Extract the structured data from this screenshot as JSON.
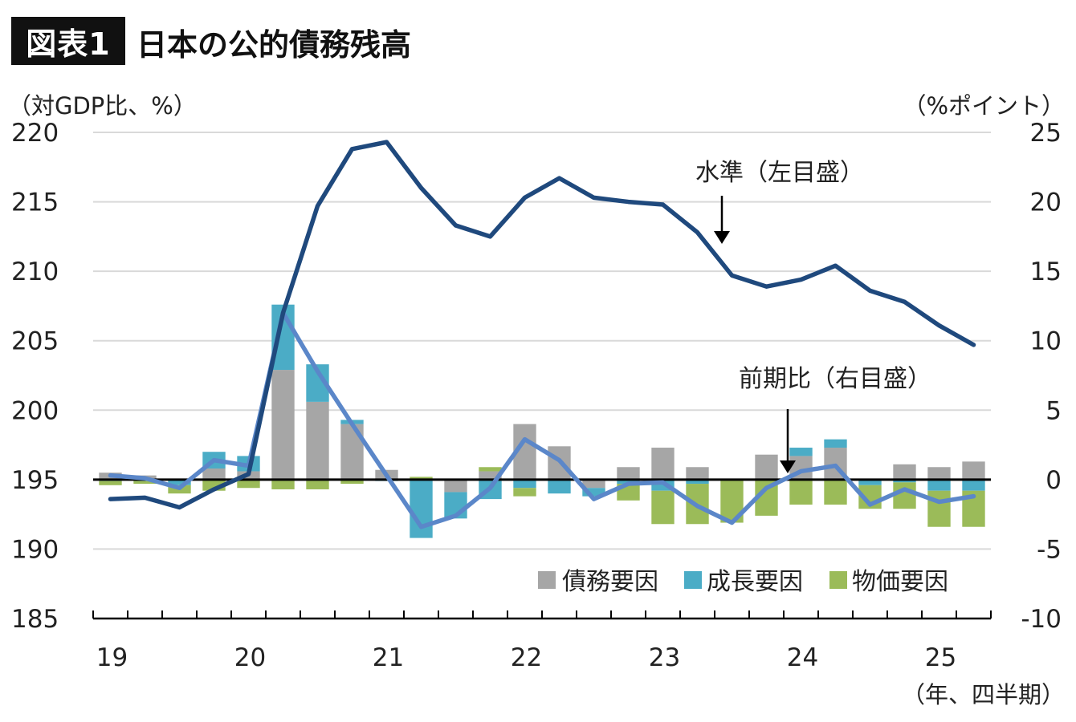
{
  "badge": "図表1",
  "title": "日本の公的債務残高",
  "chart_data": {
    "type": "bar+line",
    "title": "日本の公的債務残高",
    "left_unit": "（対GDP比、%）",
    "right_unit": "（%ポイント）",
    "x_unit": "（年、四半期）",
    "ylim_left": [
      185,
      220
    ],
    "ylim_right": [
      -10,
      25
    ],
    "left_ticks": [
      "220",
      "215",
      "210",
      "205",
      "200",
      "195",
      "190",
      "185"
    ],
    "right_ticks": [
      "25",
      "20",
      "15",
      "10",
      "5",
      "0",
      "-5",
      "-10"
    ],
    "x_year_labels": [
      "19",
      "20",
      "21",
      "22",
      "23",
      "24",
      "25"
    ],
    "quarters": [
      "19Q1",
      "19Q2",
      "19Q3",
      "19Q4",
      "20Q1",
      "20Q2",
      "20Q3",
      "20Q4",
      "21Q1",
      "21Q2",
      "21Q3",
      "21Q4",
      "22Q1",
      "22Q2",
      "22Q3",
      "22Q4",
      "23Q1",
      "23Q2",
      "23Q3",
      "23Q4",
      "24Q1",
      "24Q2",
      "24Q3",
      "24Q4",
      "25Q1",
      "25Q2"
    ],
    "level_line": {
      "name": "水準（左目盛）",
      "axis": "left",
      "values": [
        193.6,
        193.7,
        193.0,
        194.3,
        195.4,
        207.0,
        214.7,
        218.8,
        219.3,
        216.0,
        213.3,
        212.5,
        215.3,
        216.7,
        215.3,
        215.0,
        214.8,
        212.8,
        209.7,
        208.9,
        209.4,
        210.4,
        208.6,
        207.8,
        206.1,
        204.7
      ]
    },
    "change_line": {
      "name": "前期比（右目盛）",
      "axis": "right",
      "values": [
        0.3,
        0.1,
        -0.6,
        1.4,
        1.0,
        12.0,
        7.8,
        4.0,
        0.3,
        -3.4,
        -2.6,
        -0.6,
        2.9,
        1.4,
        -1.4,
        -0.3,
        -0.2,
        -1.9,
        -3.1,
        -0.6,
        0.6,
        1.0,
        -1.8,
        -0.7,
        -1.6,
        -1.2
      ]
    },
    "bar_series": [
      {
        "name": "債務要因",
        "color": "#a6a6a6",
        "values": [
          0.5,
          0.3,
          0.0,
          0.8,
          0.6,
          7.9,
          5.6,
          4.0,
          0.7,
          0.0,
          -0.9,
          0.6,
          4.0,
          2.4,
          -0.6,
          0.9,
          2.3,
          0.9,
          0.0,
          1.8,
          1.7,
          2.3,
          0.0,
          1.1,
          0.9,
          1.3
        ]
      },
      {
        "name": "成長要因",
        "color": "#4bacc6",
        "values": [
          -0.1,
          -0.1,
          -0.4,
          1.2,
          1.1,
          4.7,
          2.7,
          0.3,
          -0.1,
          -4.2,
          -1.9,
          -1.4,
          -0.6,
          -1.0,
          -0.6,
          -0.3,
          -0.8,
          -0.3,
          0.0,
          0.0,
          0.6,
          0.6,
          -0.4,
          -0.2,
          -0.8,
          -0.8
        ]
      },
      {
        "name": "物価要因",
        "color": "#9bbb59",
        "values": [
          -0.3,
          -0.2,
          -0.6,
          -0.8,
          -0.6,
          -0.7,
          -0.7,
          -0.3,
          0.0,
          0.2,
          0.0,
          0.3,
          -0.6,
          0.0,
          0.0,
          -1.2,
          -2.4,
          -2.9,
          -3.1,
          -2.6,
          -1.8,
          -1.8,
          -1.7,
          -1.9,
          -2.6,
          -2.6
        ]
      }
    ]
  }
}
